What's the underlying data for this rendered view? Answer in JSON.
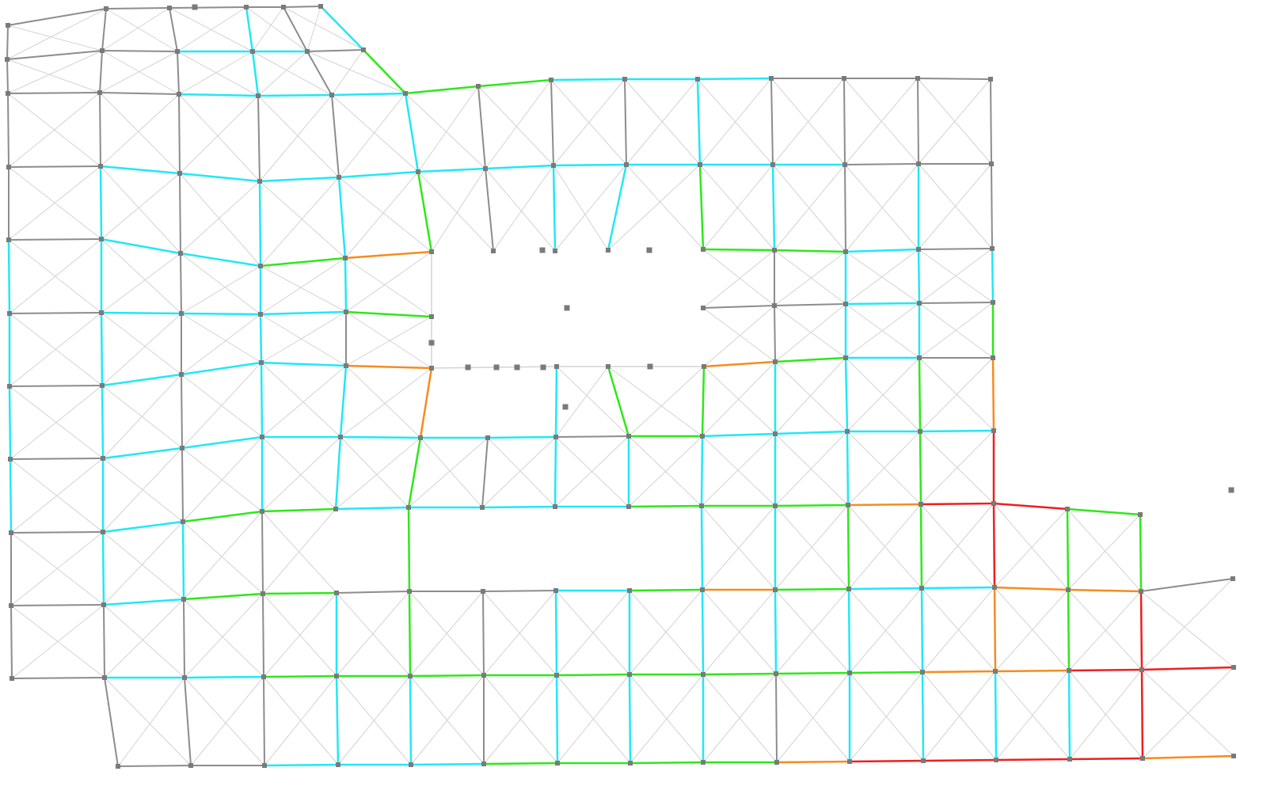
{
  "colors": {
    "background": "#ffffff",
    "grid": "#d3d3d3",
    "edge_default": "#8c8c8c",
    "edge_cyan": "#21e8f5",
    "edge_green": "#2ee81a",
    "edge_orange": "#f58c1f",
    "edge_red": "#ee1f1f",
    "node": "#7a7a7a"
  },
  "legend": {
    "note": ""
  }
}
